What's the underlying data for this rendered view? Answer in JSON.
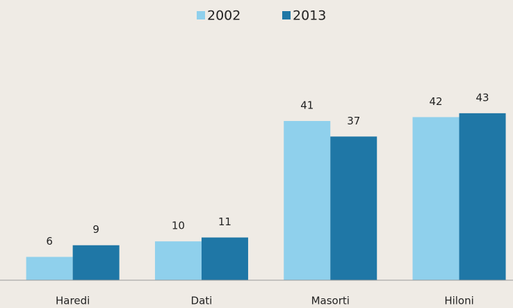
{
  "chart_data": {
    "type": "bar",
    "categories": [
      "Haredi",
      "Dati",
      "Masorti",
      "Hiloni"
    ],
    "series": [
      {
        "name": "2002",
        "color": "#8fd0ec",
        "values": [
          6,
          10,
          41,
          42
        ]
      },
      {
        "name": "2013",
        "color": "#1f77a6",
        "values": [
          9,
          11,
          37,
          43
        ]
      }
    ],
    "ylim": [
      0,
      65
    ],
    "legend": "top"
  }
}
